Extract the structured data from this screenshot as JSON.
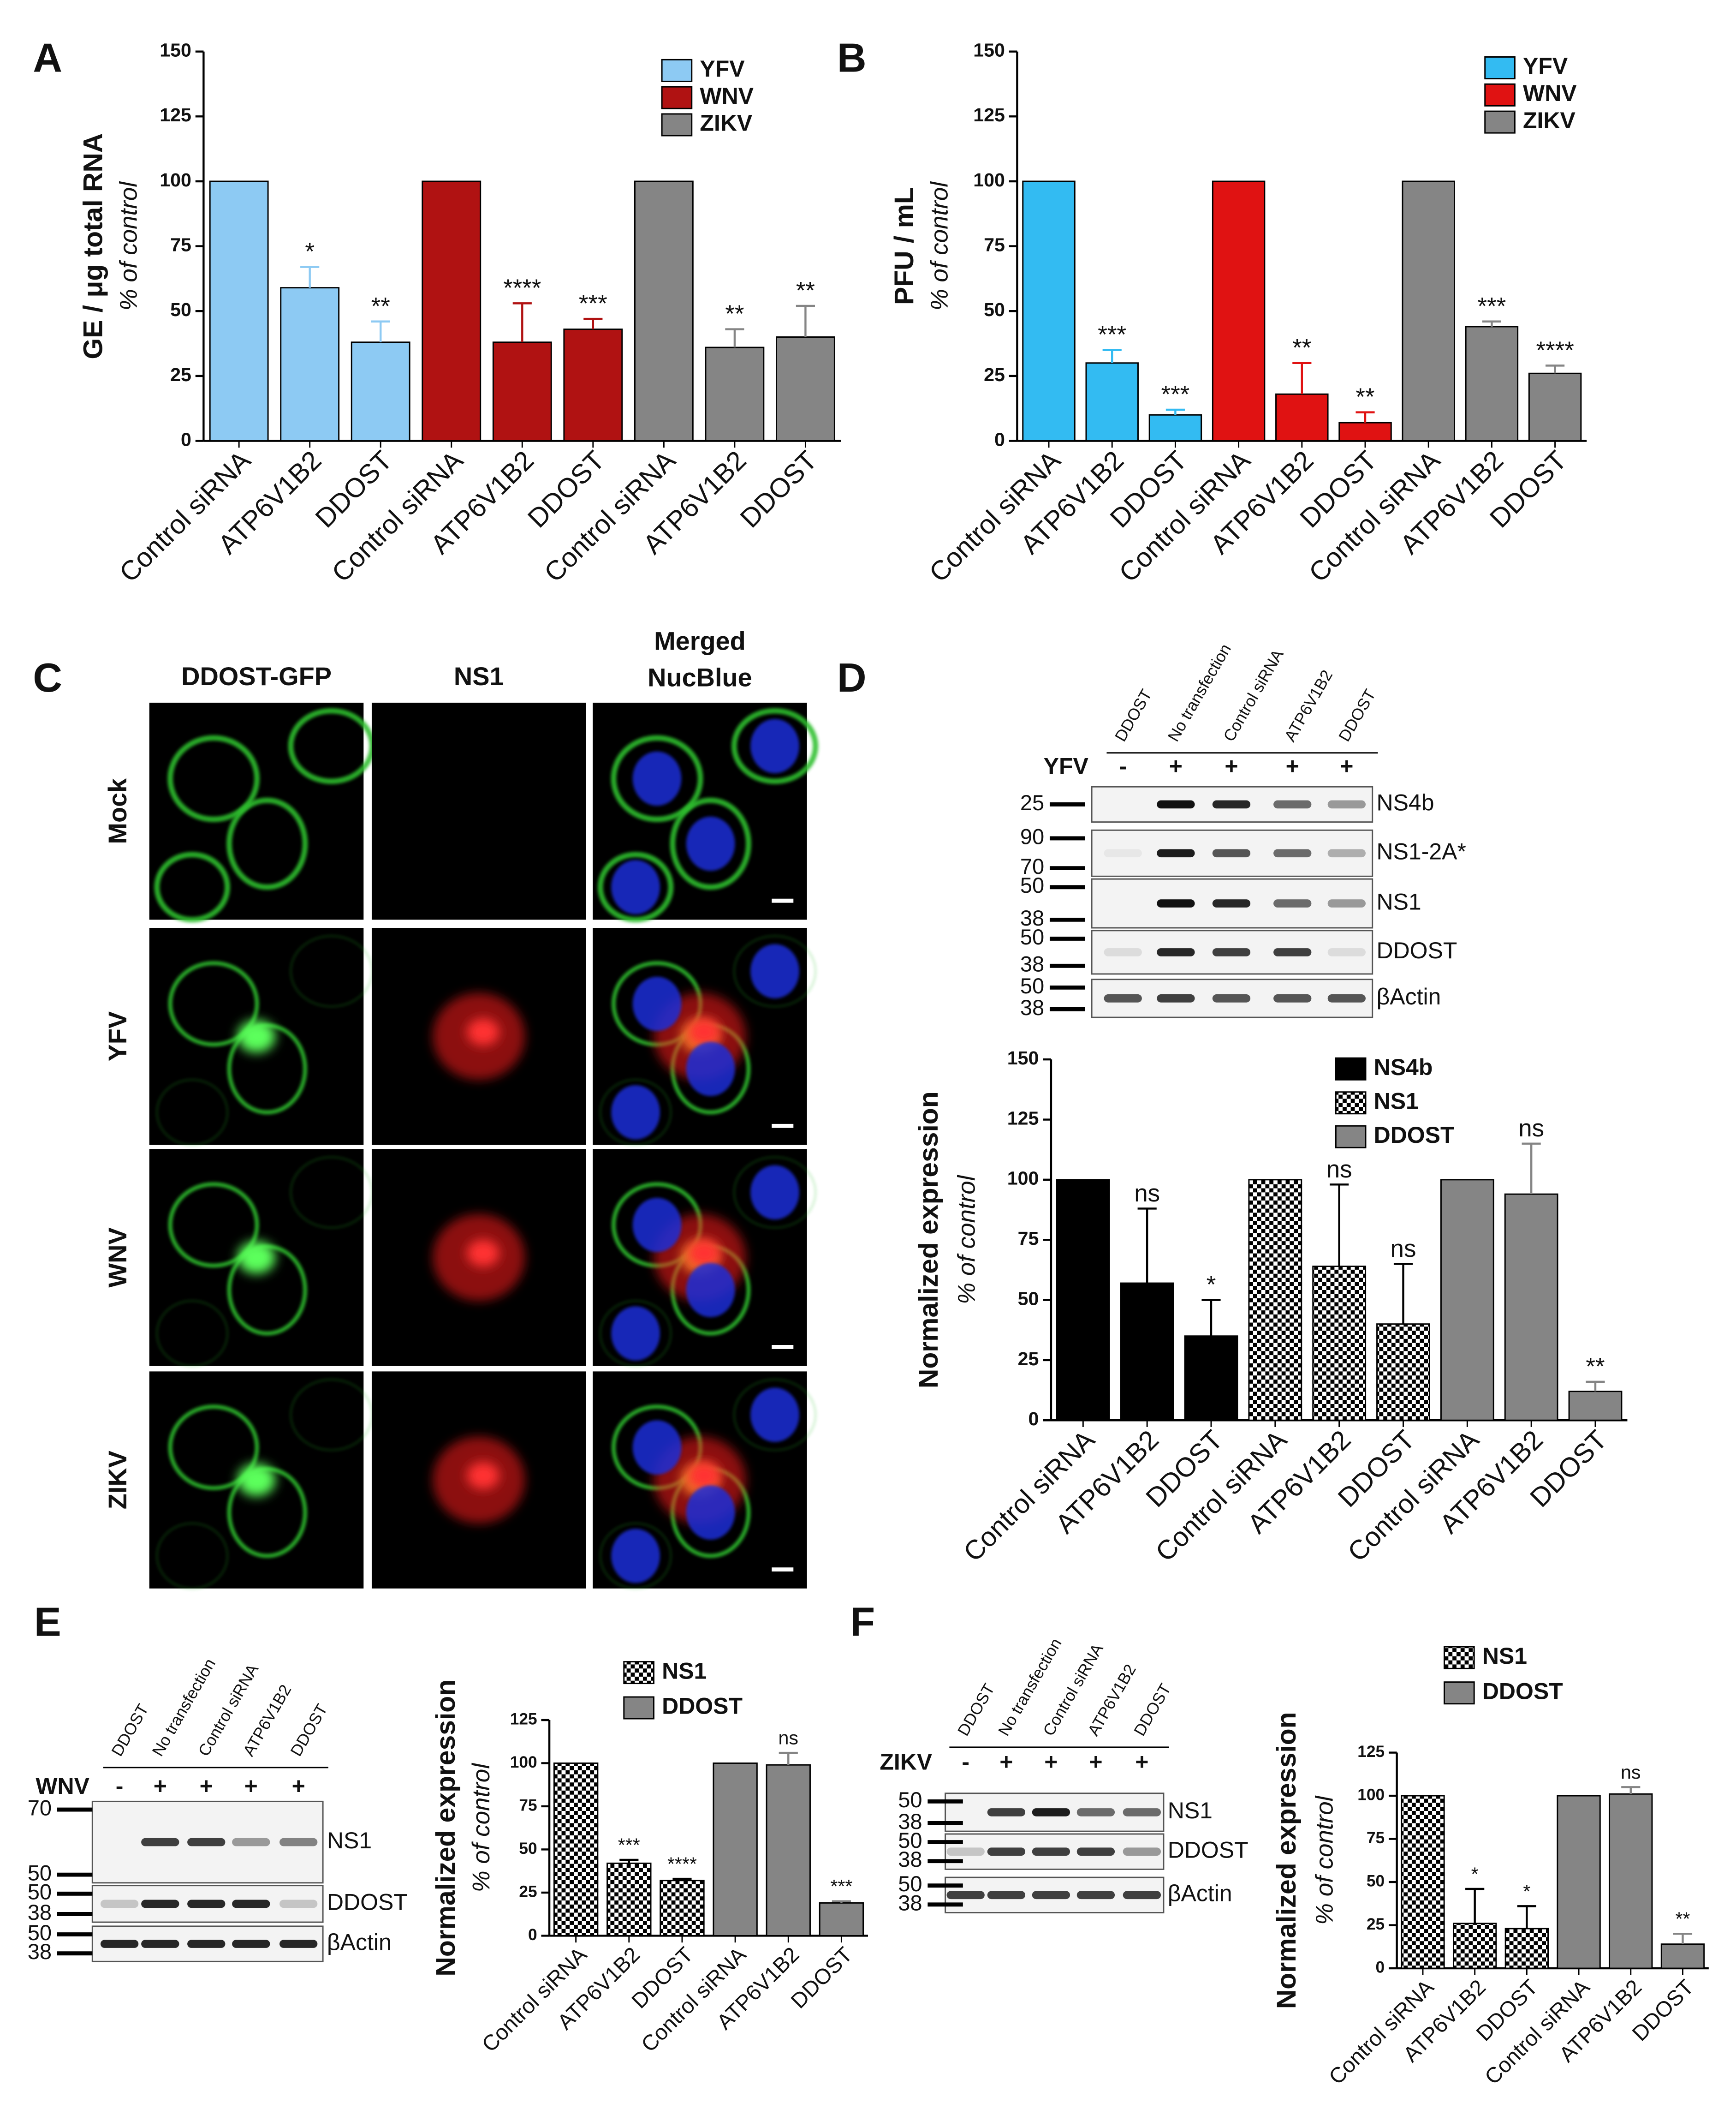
{
  "panel_labels": [
    "A",
    "B",
    "C",
    "D",
    "E",
    "F"
  ],
  "microscopy": {
    "columns": [
      [
        "DDOST-GFP"
      ],
      [
        "NS1"
      ],
      [
        "Merged",
        "NucBlue"
      ]
    ],
    "rows": [
      "Mock",
      "YFV",
      "WNV",
      "ZIKV"
    ]
  },
  "blots": [
    {
      "virus": "YFV",
      "lanes": [
        "DDOST",
        "No transfection",
        "Control siRNA",
        "ATP6V1B2",
        "DDOST"
      ],
      "signs": [
        "-",
        "+",
        "+",
        "+",
        "+"
      ],
      "rows": [
        {
          "markers": [
            "25"
          ],
          "label": "NS4b"
        },
        {
          "markers": [
            "90",
            "70"
          ],
          "label": "NS1-2A*"
        },
        {
          "markers": [
            "50",
            "38"
          ],
          "label": "NS1"
        },
        {
          "markers": [
            "50",
            "38"
          ],
          "label": "DDOST"
        },
        {
          "markers": [
            "50",
            "38"
          ],
          "label": "βActin"
        }
      ]
    },
    {
      "virus": "WNV",
      "lanes": [
        "DDOST",
        "No transfection",
        "Control siRNA",
        "ATP6V1B2",
        "DDOST"
      ],
      "signs": [
        "-",
        "+",
        "+",
        "+",
        "+"
      ],
      "rows": [
        {
          "markers": [
            "70",
            "50"
          ],
          "label": "NS1"
        },
        {
          "markers": [
            "50",
            "38"
          ],
          "label": "DDOST"
        },
        {
          "markers": [
            "50",
            "38"
          ],
          "label": "βActin"
        }
      ]
    },
    {
      "virus": "ZIKV",
      "lanes": [
        "DDOST",
        "No transfection",
        "Control siRNA",
        "ATP6V1B2",
        "DDOST"
      ],
      "signs": [
        "-",
        "+",
        "+",
        "+",
        "+"
      ],
      "rows": [
        {
          "markers": [
            "50",
            "38"
          ],
          "label": "NS1"
        },
        {
          "markers": [
            "50",
            "38"
          ],
          "label": "DDOST"
        },
        {
          "markers": [
            "50",
            "38"
          ],
          "label": "βActin"
        }
      ]
    }
  ],
  "chart_data": [
    {
      "type": "bar",
      "ylabel": "GE / μg total RNA",
      "ysublabel": "% of control",
      "categories": [
        "Control siRNA",
        "ATP6V1B2",
        "DDOST",
        "Control siRNA",
        "ATP6V1B2",
        "DDOST",
        "Control siRNA",
        "ATP6V1B2",
        "DDOST"
      ],
      "series": [
        {
          "name": "YFV",
          "color": "#8dcaf3",
          "values": [
            100,
            59,
            38,
            null,
            null,
            null,
            null,
            null,
            null
          ],
          "errors": [
            null,
            8,
            8,
            null,
            null,
            null,
            null,
            null,
            null
          ],
          "sig": [
            null,
            "*",
            "**",
            null,
            null,
            null,
            null,
            null,
            null
          ]
        },
        {
          "name": "WNV",
          "color": "#b01212",
          "values": [
            null,
            null,
            null,
            100,
            38,
            43,
            null,
            null,
            null
          ],
          "errors": [
            null,
            null,
            null,
            null,
            15,
            4,
            null,
            null,
            null
          ],
          "sig": [
            null,
            null,
            null,
            null,
            "****",
            "***",
            null,
            null,
            null
          ]
        },
        {
          "name": "ZIKV",
          "color": "#858585",
          "values": [
            null,
            null,
            null,
            null,
            null,
            null,
            100,
            36,
            40
          ],
          "errors": [
            null,
            null,
            null,
            null,
            null,
            null,
            null,
            7,
            12
          ],
          "sig": [
            null,
            null,
            null,
            null,
            null,
            null,
            null,
            "**",
            "**"
          ]
        }
      ],
      "ylim": [
        0,
        150
      ],
      "yticks": [
        0,
        25,
        50,
        75,
        100,
        125,
        150
      ]
    },
    {
      "type": "bar",
      "ylabel": "PFU / mL",
      "ysublabel": "% of control",
      "categories": [
        "Control siRNA",
        "ATP6V1B2",
        "DDOST",
        "Control siRNA",
        "ATP6V1B2",
        "DDOST",
        "Control siRNA",
        "ATP6V1B2",
        "DDOST"
      ],
      "series": [
        {
          "name": "YFV",
          "color": "#33bbf2",
          "values": [
            100,
            30,
            10,
            null,
            null,
            null,
            null,
            null,
            null
          ],
          "errors": [
            null,
            5,
            2,
            null,
            null,
            null,
            null,
            null,
            null
          ],
          "sig": [
            null,
            "***",
            "***",
            null,
            null,
            null,
            null,
            null,
            null
          ]
        },
        {
          "name": "WNV",
          "color": "#e01212",
          "values": [
            null,
            null,
            null,
            100,
            18,
            7,
            null,
            null,
            null
          ],
          "errors": [
            null,
            null,
            null,
            null,
            12,
            4,
            null,
            null,
            null
          ],
          "sig": [
            null,
            null,
            null,
            null,
            "**",
            "**",
            null,
            null,
            null
          ]
        },
        {
          "name": "ZIKV",
          "color": "#858585",
          "values": [
            null,
            null,
            null,
            null,
            null,
            null,
            100,
            44,
            26
          ],
          "errors": [
            null,
            null,
            null,
            null,
            null,
            null,
            null,
            2,
            3
          ],
          "sig": [
            null,
            null,
            null,
            null,
            null,
            null,
            null,
            "***",
            "****"
          ]
        }
      ],
      "ylim": [
        0,
        150
      ],
      "yticks": [
        0,
        25,
        50,
        75,
        100,
        125,
        150
      ]
    },
    {
      "type": "bar",
      "ylabel": "Normalized expression",
      "ysublabel": "% of control",
      "categories": [
        "Control siRNA",
        "ATP6V1B2",
        "DDOST",
        "Control siRNA",
        "ATP6V1B2",
        "DDOST",
        "Control siRNA",
        "ATP6V1B2",
        "DDOST"
      ],
      "series": [
        {
          "name": "NS4b",
          "color": "#000000",
          "values": [
            100,
            57,
            35,
            null,
            null,
            null,
            null,
            null,
            null
          ],
          "errors": [
            null,
            31,
            15,
            null,
            null,
            null,
            null,
            null,
            null
          ],
          "sig": [
            null,
            "ns",
            "*",
            null,
            null,
            null,
            null,
            null,
            null
          ]
        },
        {
          "name": "NS1",
          "color": "#000000",
          "pattern": "checker",
          "values": [
            null,
            null,
            null,
            100,
            64,
            40,
            null,
            null,
            null
          ],
          "errors": [
            null,
            null,
            null,
            null,
            34,
            25,
            null,
            null,
            null
          ],
          "sig": [
            null,
            null,
            null,
            null,
            "ns",
            "ns",
            null,
            null,
            null
          ]
        },
        {
          "name": "DDOST",
          "color": "#858585",
          "values": [
            null,
            null,
            null,
            null,
            null,
            null,
            100,
            94,
            12
          ],
          "errors": [
            null,
            null,
            null,
            null,
            null,
            null,
            null,
            21,
            4
          ],
          "sig": [
            null,
            null,
            null,
            null,
            null,
            null,
            null,
            "ns",
            "**"
          ]
        }
      ],
      "ylim": [
        0,
        150
      ],
      "yticks": [
        0,
        25,
        50,
        75,
        100,
        125,
        150
      ]
    },
    {
      "type": "bar",
      "ylabel": "Normalized expression",
      "ysublabel": "% of control",
      "categories": [
        "Control siRNA",
        "ATP6V1B2",
        "DDOST",
        "Control siRNA",
        "ATP6V1B2",
        "DDOST"
      ],
      "series": [
        {
          "name": "NS1",
          "color": "#000000",
          "pattern": "checker",
          "values": [
            100,
            42,
            32,
            null,
            null,
            null
          ],
          "errors": [
            null,
            2,
            1,
            null,
            null,
            null
          ],
          "sig": [
            null,
            "***",
            "****",
            null,
            null,
            null
          ]
        },
        {
          "name": "DDOST",
          "color": "#858585",
          "values": [
            null,
            null,
            null,
            100,
            99,
            19
          ],
          "errors": [
            null,
            null,
            null,
            null,
            7,
            1
          ],
          "sig": [
            null,
            null,
            null,
            null,
            "ns",
            "***"
          ]
        }
      ],
      "ylim": [
        0,
        125
      ],
      "yticks": [
        0,
        25,
        50,
        75,
        100,
        125
      ]
    },
    {
      "type": "bar",
      "ylabel": "Normalized expression",
      "ysublabel": "% of control",
      "categories": [
        "Control siRNA",
        "ATP6V1B2",
        "DDOST",
        "Control siRNA",
        "ATP6V1B2",
        "DDOST"
      ],
      "series": [
        {
          "name": "NS1",
          "color": "#000000",
          "pattern": "checker",
          "values": [
            100,
            26,
            23,
            null,
            null,
            null
          ],
          "errors": [
            null,
            20,
            13,
            null,
            null,
            null
          ],
          "sig": [
            null,
            "*",
            "*",
            null,
            null,
            null
          ]
        },
        {
          "name": "DDOST",
          "color": "#858585",
          "values": [
            null,
            null,
            null,
            100,
            101,
            14
          ],
          "errors": [
            null,
            null,
            null,
            null,
            4,
            6
          ],
          "sig": [
            null,
            null,
            null,
            null,
            "ns",
            "**"
          ]
        }
      ],
      "ylim": [
        0,
        125
      ],
      "yticks": [
        0,
        25,
        50,
        75,
        100,
        125
      ]
    }
  ]
}
